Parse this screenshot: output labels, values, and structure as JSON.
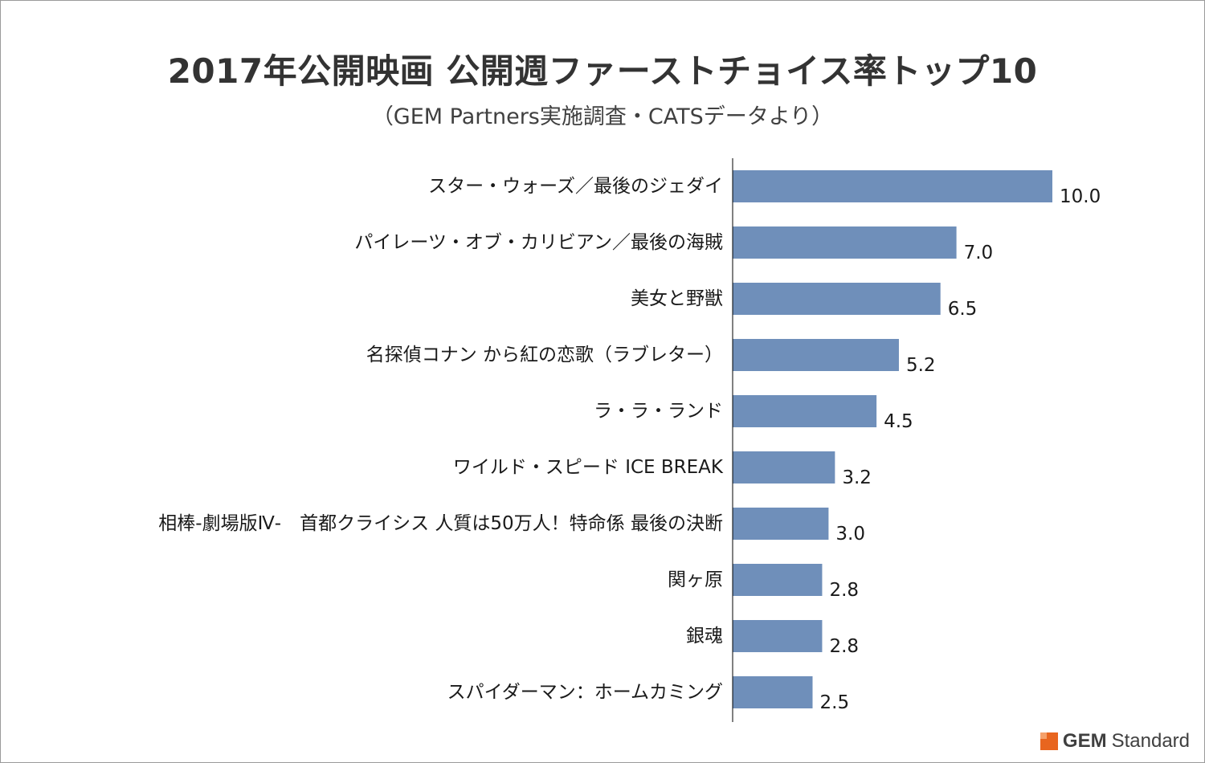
{
  "colors": {
    "bar": "#6f8fba",
    "axis": "#000000",
    "brand_accent": "#e8651f"
  },
  "brand": {
    "name_bold": "GEM",
    "name_rest": "Standard",
    "logo_icon": "orange-square-logo"
  },
  "chart_data": {
    "type": "bar",
    "orientation": "horizontal",
    "title": "2017年公開映画 公開週ファーストチョイス率トップ10",
    "subtitle": "（GEM Partners実施調査・CATSデータより）",
    "categories": [
      "スター・ウォーズ／最後のジェダイ",
      "パイレーツ・オブ・カリビアン／最後の海賊",
      "美女と野獣",
      "名探偵コナン から紅の恋歌（ラブレター）",
      "ラ・ラ・ランド",
      "ワイルド・スピード ICE BREAK",
      "相棒-劇場版Ⅳ-　首都クライシス 人質は50万人！特命係 最後の決断",
      "関ヶ原",
      "銀魂",
      "スパイダーマン：ホームカミング"
    ],
    "values": [
      10.0,
      7.0,
      6.5,
      5.2,
      4.5,
      3.2,
      3.0,
      2.8,
      2.8,
      2.5
    ],
    "value_labels": [
      "10.0",
      "7.0",
      "6.5",
      "5.2",
      "4.5",
      "3.2",
      "3.0",
      "2.8",
      "2.8",
      "2.5"
    ],
    "xlim": [
      0,
      10
    ],
    "grid": false,
    "legend": "none"
  }
}
